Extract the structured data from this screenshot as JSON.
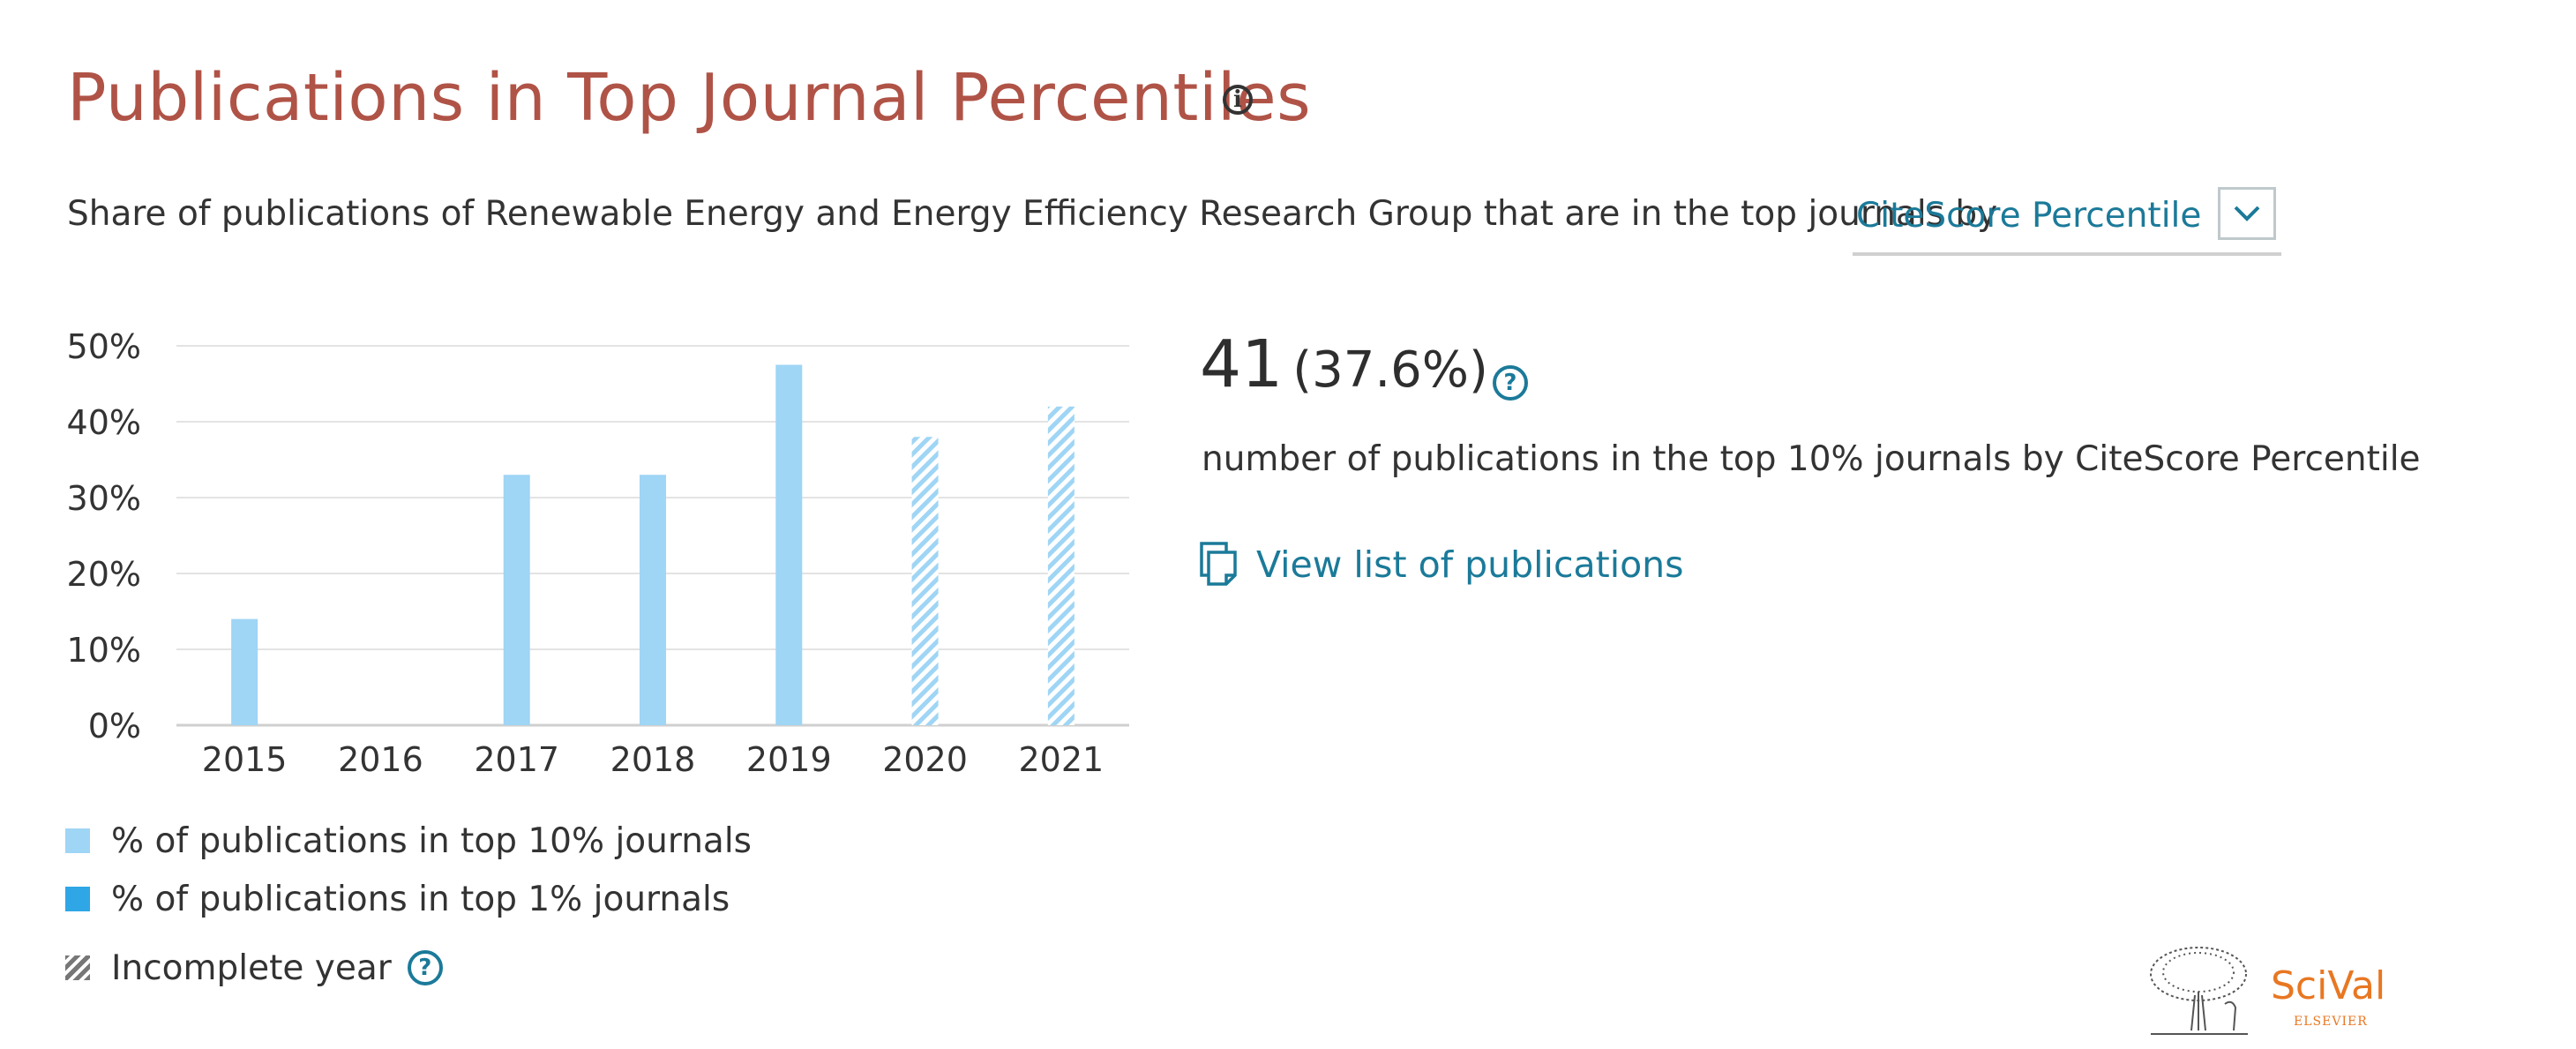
{
  "header": {
    "title": "Publications in Top Journal Percentiles",
    "info_glyph": "i",
    "subtitle": "Share of publications of Renewable Energy and Energy Efficiency Research Group that are in the top journals by",
    "dropdown_value": "CiteScore Percentile"
  },
  "summary": {
    "count": "41",
    "percent": "(37.6%)",
    "help_glyph": "?",
    "description": "number of publications in the top 10% journals by CiteScore Percentile",
    "view_link": "View list of publications"
  },
  "legend": {
    "top10_label": "% of publications in top 10% journals",
    "top1_label": "% of publications in top 1% journals",
    "incomplete_label": "Incomplete year",
    "help_glyph": "?"
  },
  "branding": {
    "product": "SciVal",
    "publisher": "ELSEVIER"
  },
  "colors": {
    "title": "#b05347",
    "link": "#1b7a99",
    "top10": "#9fd5f5",
    "top1": "#2fa6e6",
    "grid": "#e3e3e3",
    "brand": "#e87722"
  },
  "chart_data": {
    "type": "bar",
    "categories": [
      "2015",
      "2016",
      "2017",
      "2018",
      "2019",
      "2020",
      "2021"
    ],
    "series": [
      {
        "name": "% of publications in top 10% journals",
        "values": [
          14,
          0,
          33,
          33,
          47.5,
          38,
          42
        ]
      }
    ],
    "incomplete": [
      false,
      false,
      false,
      false,
      false,
      true,
      true
    ],
    "ylim": [
      0,
      50
    ],
    "yticks": [
      "0%",
      "10%",
      "20%",
      "30%",
      "40%",
      "50%"
    ],
    "ytick_values": [
      0,
      10,
      20,
      30,
      40,
      50
    ],
    "grid": true,
    "legend_position": "bottom-left"
  }
}
